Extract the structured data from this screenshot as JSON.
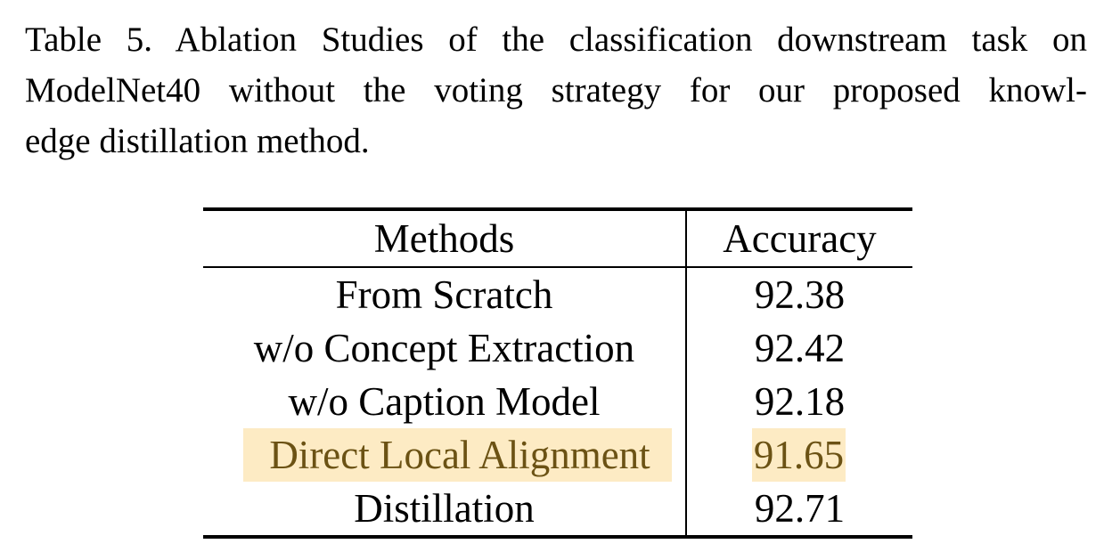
{
  "caption": {
    "lines": [
      "Table 5. Ablation Studies of the classification downstream task on",
      "ModelNet40 without the voting strategy for our proposed knowl-",
      "edge distillation method."
    ]
  },
  "table": {
    "headers": [
      "Methods",
      "Accuracy"
    ],
    "rows": [
      {
        "method": "From Scratch",
        "accuracy": "92.38"
      },
      {
        "method": "w/o Concept Extraction",
        "accuracy": "92.42"
      },
      {
        "method": "w/o Caption Model",
        "accuracy": "92.18"
      },
      {
        "method": "Direct Local Alignment",
        "accuracy": "91.65"
      },
      {
        "method": "Distillation",
        "accuracy": "92.71"
      }
    ],
    "highlight_color": "#fdebc4",
    "highlight_text_color": "#6b5214"
  }
}
